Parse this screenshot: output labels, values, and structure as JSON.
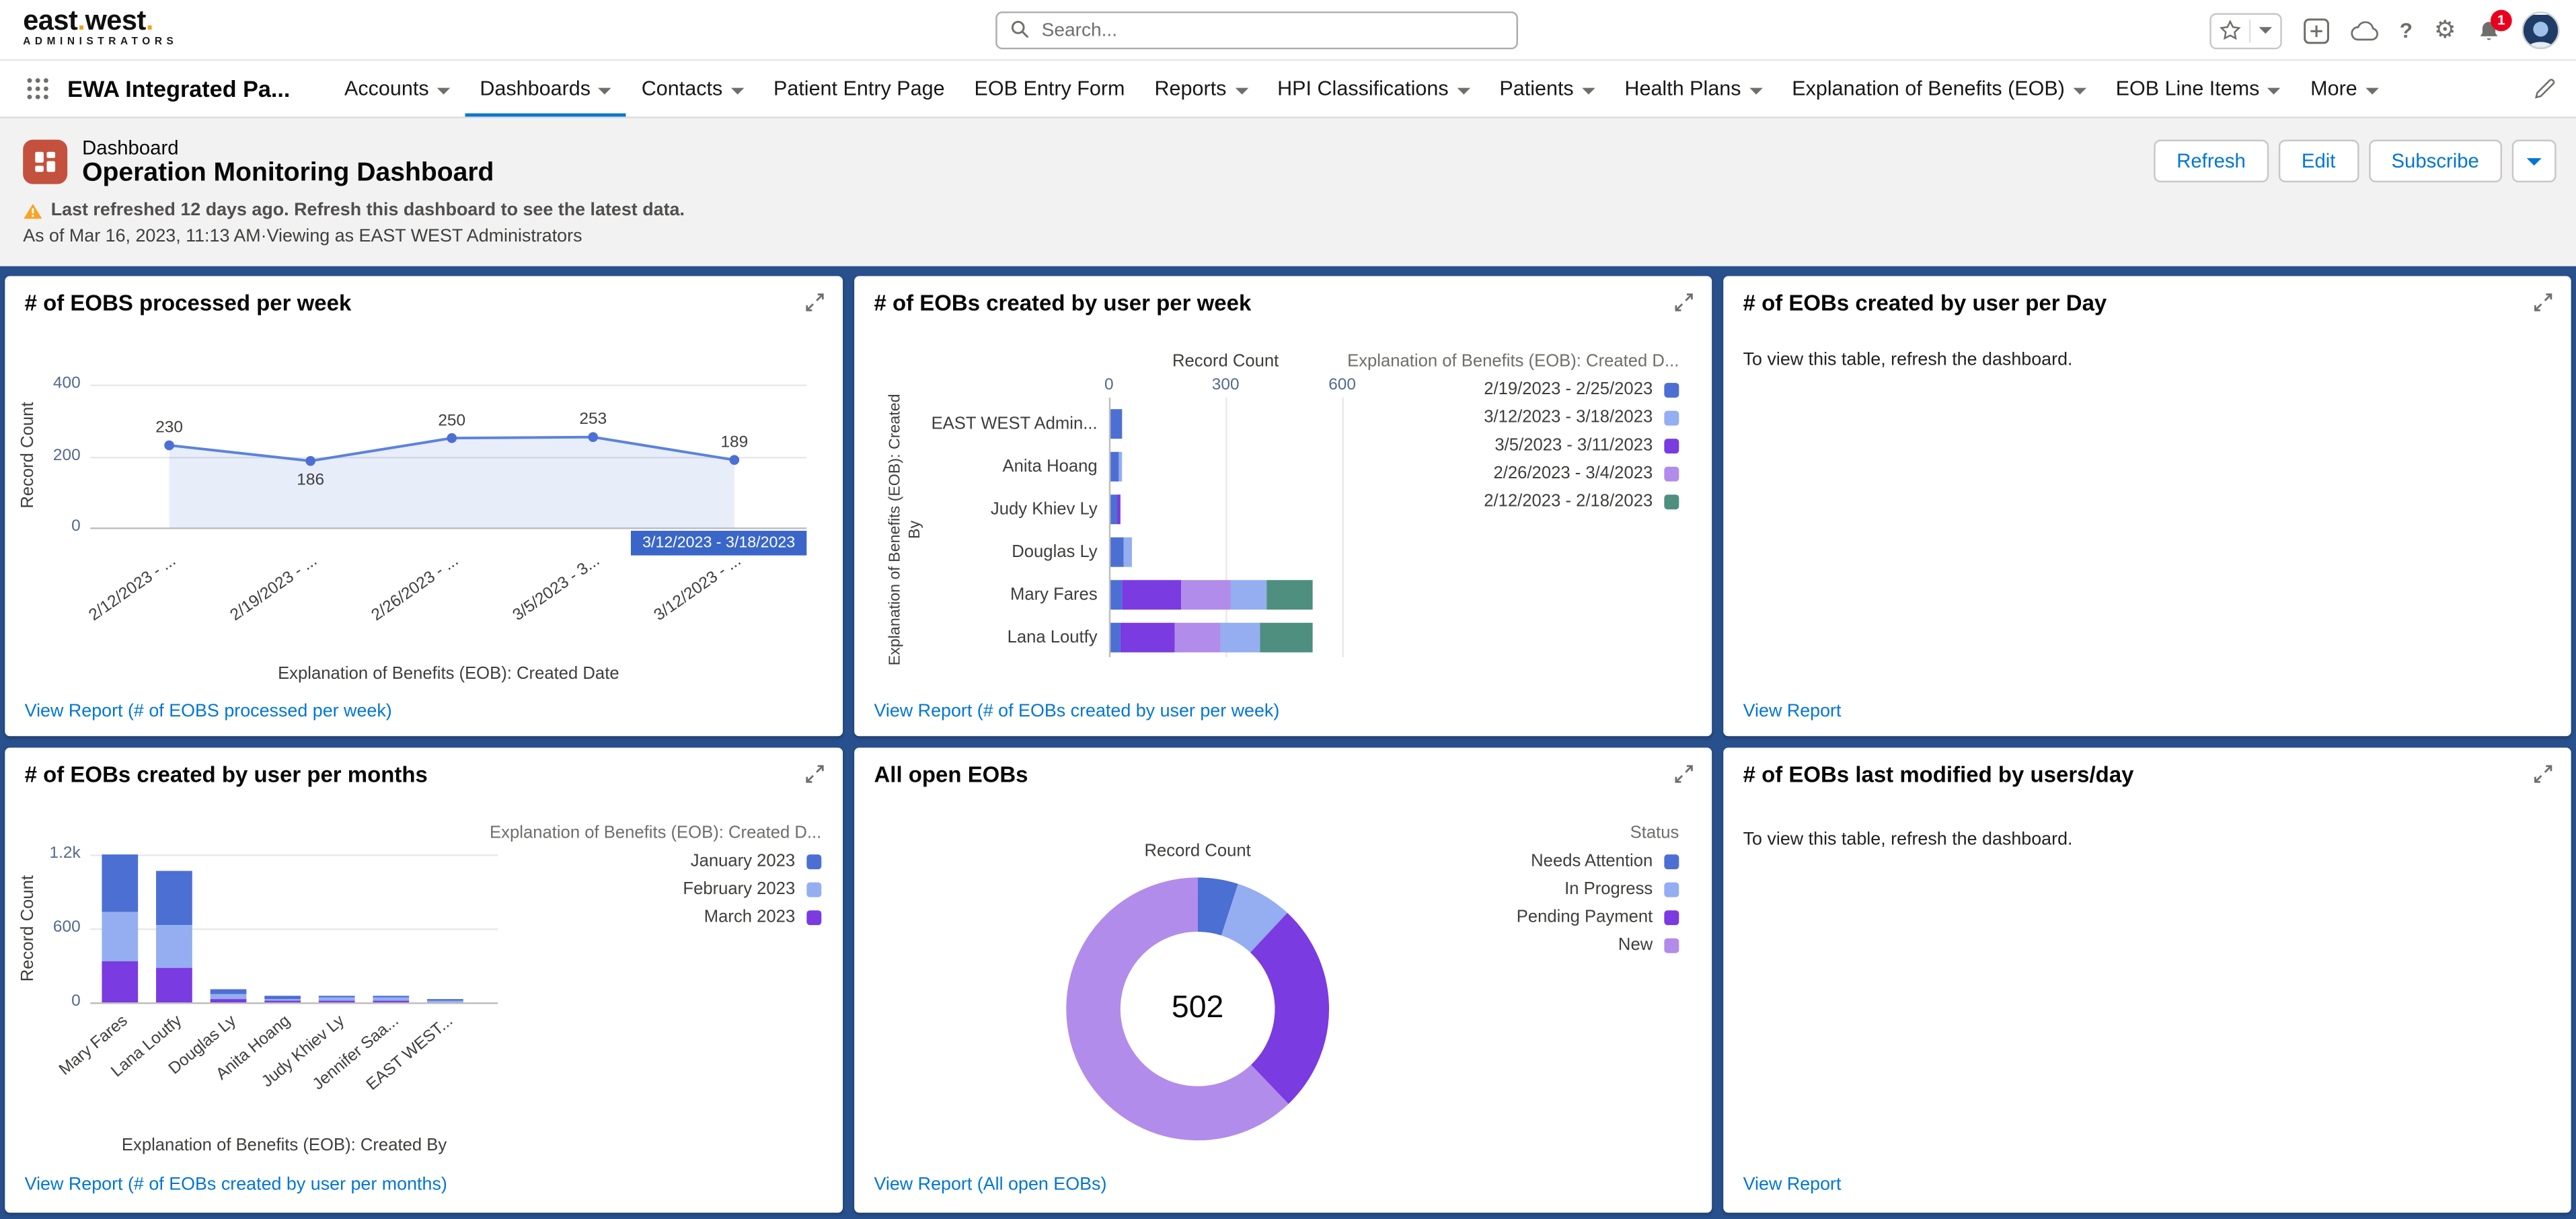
{
  "colors": {
    "blue": "#4C6FD3",
    "light_blue": "#94AEF1",
    "violet": "#7A3BE0",
    "light_purple": "#B28CEA",
    "teal": "#4E8F7F",
    "link": "#0176D3",
    "line": "#5B82DD",
    "area_fill": "rgba(91,130,221,0.14)",
    "selected_bg": "#3A66C9",
    "canvas_bg": "#28508C",
    "page_icon_bg": "#C4513D",
    "notification_red": "#EA001E",
    "logo_dot": "#F2A01E"
  },
  "global_header": {
    "logo": {
      "part1": "east",
      "part2": "west",
      "dot": ".",
      "tagline": "ADMINISTRATORS"
    },
    "search_placeholder": "Search...",
    "notification_count": "1"
  },
  "nav": {
    "app_name": "EWA Integrated Pa...",
    "tabs": [
      {
        "label": "Accounts"
      },
      {
        "label": "Dashboards"
      },
      {
        "label": "Contacts"
      },
      {
        "label": "Patient Entry Page"
      },
      {
        "label": "EOB Entry Form"
      },
      {
        "label": "Reports"
      },
      {
        "label": "HPI Classifications"
      },
      {
        "label": "Patients"
      },
      {
        "label": "Health Plans"
      },
      {
        "label": "Explanation of Benefits (EOB)"
      },
      {
        "label": "EOB Line Items"
      },
      {
        "label": "More"
      }
    ]
  },
  "page_header": {
    "record_type": "Dashboard",
    "title": "Operation Monitoring Dashboard",
    "warning": "Last refreshed 12 days ago. Refresh this dashboard to see the latest data.",
    "as_of": "As of Mar 16, 2023, 11:13 AM·Viewing as EAST WEST Administrators",
    "refresh_label": "Refresh",
    "edit_label": "Edit",
    "subscribe_label": "Subscribe"
  },
  "cards": [
    {
      "title": "# of EOBS processed per week",
      "link": "View Report (# of EOBS processed per week)"
    },
    {
      "title": "# of EOBs created by user per week",
      "link": "View Report (# of EOBs created by user per week)"
    },
    {
      "title": "# of EOBs created by user per Day",
      "message": "To view this table, refresh the dashboard.",
      "link": "View Report"
    },
    {
      "title": "# of EOBs created by user per months",
      "link": "View Report (# of EOBs created by user per months)"
    },
    {
      "title": "All open EOBs",
      "link": "View Report (All open EOBs)"
    },
    {
      "title": "# of EOBs last modified by users/day",
      "message": "To view this table, refresh the dashboard.",
      "link": "View Report"
    }
  ],
  "chart_data": [
    {
      "id": "eobs_per_week",
      "type": "area",
      "title": "# of EOBS processed per week",
      "ylabel": "Record Count",
      "xlabel": "Explanation of Benefits (EOB): Created Date",
      "categories": [
        "2/12/2023 - ...",
        "2/19/2023 - ...",
        "2/26/2023 - ...",
        "3/5/2023 - 3...",
        "3/12/2023 - ..."
      ],
      "values": [
        230,
        186,
        250,
        253,
        189
      ],
      "yticks": [
        0,
        200,
        400
      ],
      "ylim": [
        0,
        400
      ],
      "grid": true,
      "selected_label": "3/12/2023 - 3/18/2023"
    },
    {
      "id": "created_per_week",
      "type": "bar-h-stacked",
      "title": "# of EOBs created by user per week",
      "axis_header": "Record Count",
      "ylabel": "Explanation of Benefits (EOB): Created By",
      "categories": [
        "EAST WEST Admin...",
        "Anita Hoang",
        "Judy Khiev Ly",
        "Douglas Ly",
        "Mary Fares",
        "Lana Loutfy"
      ],
      "xticks": [
        0,
        300,
        600
      ],
      "xlim": [
        0,
        600
      ],
      "legend_title": "Explanation of Benefits (EOB): Created D...",
      "legend": [
        {
          "label": "2/19/2023 - 2/25/2023",
          "color_key": "blue"
        },
        {
          "label": "3/12/2023 - 3/18/2023",
          "color_key": "light_blue"
        },
        {
          "label": "3/5/2023 - 3/11/2023",
          "color_key": "violet"
        },
        {
          "label": "2/26/2023 - 3/4/2023",
          "color_key": "light_purple"
        },
        {
          "label": "2/12/2023 - 2/18/2023",
          "color_key": "teal"
        }
      ],
      "series": [
        {
          "name": "2/19/2023 - 2/25/2023",
          "color_key": "blue",
          "values": [
            30,
            20,
            18,
            35,
            30,
            25
          ]
        },
        {
          "name": "3/5/2023 - 3/11/2023",
          "color_key": "violet",
          "values": [
            0,
            0,
            8,
            0,
            150,
            140
          ]
        },
        {
          "name": "2/26/2023 - 3/4/2023",
          "color_key": "light_purple",
          "values": [
            0,
            0,
            0,
            0,
            130,
            120
          ]
        },
        {
          "name": "3/12/2023 - 3/18/2023",
          "color_key": "light_blue",
          "values": [
            0,
            8,
            0,
            20,
            90,
            100
          ]
        },
        {
          "name": "2/12/2023 - 2/18/2023",
          "color_key": "teal",
          "values": [
            0,
            0,
            0,
            0,
            120,
            135
          ]
        }
      ]
    },
    {
      "id": "created_per_months",
      "type": "bar-v-stacked",
      "title": "# of EOBs created by user per months",
      "ylabel": "Record Count",
      "xlabel": "Explanation of Benefits (EOB): Created By",
      "categories": [
        "Mary Fares",
        "Lana Loutfy",
        "Douglas Ly",
        "Anita Hoang",
        "Judy Khiev Ly",
        "Jennifer Saa...",
        "EAST WEST..."
      ],
      "yticks": [
        {
          "v": 0,
          "label": "0"
        },
        {
          "v": 600,
          "label": "600"
        },
        {
          "v": 1200,
          "label": "1.2k"
        }
      ],
      "ylim": [
        0,
        1300
      ],
      "legend_title": "Explanation of Benefits (EOB): Created D...",
      "legend": [
        {
          "label": "January 2023",
          "color_key": "blue"
        },
        {
          "label": "February 2023",
          "color_key": "light_blue"
        },
        {
          "label": "March 2023",
          "color_key": "violet"
        }
      ],
      "series": [
        {
          "name": "March 2023",
          "color_key": "violet",
          "values": [
            340,
            280,
            30,
            10,
            15,
            10,
            5
          ]
        },
        {
          "name": "February 2023",
          "color_key": "light_blue",
          "values": [
            400,
            350,
            40,
            20,
            20,
            25,
            10
          ]
        },
        {
          "name": "January 2023",
          "color_key": "blue",
          "values": [
            460,
            430,
            40,
            25,
            25,
            20,
            15
          ]
        }
      ]
    },
    {
      "id": "open_eobs",
      "type": "donut",
      "title": "All open EOBs",
      "header": "Record Count",
      "center_value": "502",
      "legend_title": "Status",
      "slices": [
        {
          "label": "Needs Attention",
          "color_key": "blue",
          "value": 25
        },
        {
          "label": "In Progress",
          "color_key": "light_blue",
          "value": 35
        },
        {
          "label": "Pending Payment",
          "color_key": "violet",
          "value": 130
        },
        {
          "label": "New",
          "color_key": "light_purple",
          "value": 312
        }
      ]
    }
  ]
}
